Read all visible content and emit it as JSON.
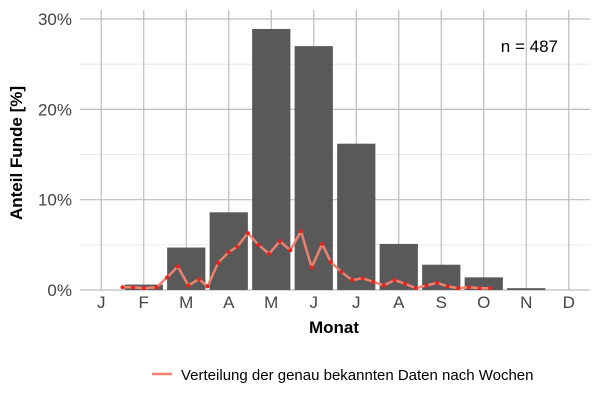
{
  "chart_data": {
    "type": "bar",
    "categories": [
      "J",
      "F",
      "M",
      "A",
      "M",
      "J",
      "J",
      "A",
      "S",
      "O",
      "N",
      "D"
    ],
    "values": [
      0,
      0.6,
      4.7,
      8.6,
      28.9,
      27.0,
      16.2,
      5.1,
      2.8,
      1.4,
      0.2,
      0
    ],
    "xlabel": "Monat",
    "ylabel": "Anteil Funde [%]",
    "ylim": [
      0,
      31
    ],
    "yticks": [
      0,
      10,
      20,
      30
    ],
    "ytick_labels": [
      "0%",
      "10%",
      "20%",
      "30%"
    ],
    "annotation": "n = 487",
    "grid": true,
    "legend_position": "bottom-right",
    "bar_color": "#595959",
    "line_series": {
      "name": "Verteilung der genau bekannten Daten nach Wochen",
      "color": "#f08070",
      "point_color": "#e8231e",
      "x_month": [
        1.5,
        1.75,
        2.0,
        2.3,
        2.55,
        2.8,
        3.05,
        3.3,
        3.5,
        3.75,
        4.0,
        4.2,
        4.45,
        4.7,
        4.95,
        5.2,
        5.45,
        5.7,
        5.95,
        6.2,
        6.4,
        6.65,
        6.9,
        7.15,
        7.4,
        7.65,
        7.9,
        8.15,
        8.4,
        8.65,
        8.9,
        9.15,
        9.4,
        9.65,
        9.9,
        10.15
      ],
      "y": [
        0.3,
        0.3,
        0.2,
        0.3,
        1.4,
        2.6,
        0.5,
        1.2,
        0.4,
        3.0,
        4.2,
        4.8,
        6.3,
        5.0,
        4.0,
        5.4,
        4.4,
        6.5,
        2.5,
        5.1,
        3.1,
        2.0,
        1.1,
        1.3,
        0.9,
        0.5,
        1.1,
        0.7,
        0.2,
        0.5,
        0.8,
        0.4,
        0.2,
        0.3,
        0.2,
        0.2
      ]
    }
  }
}
